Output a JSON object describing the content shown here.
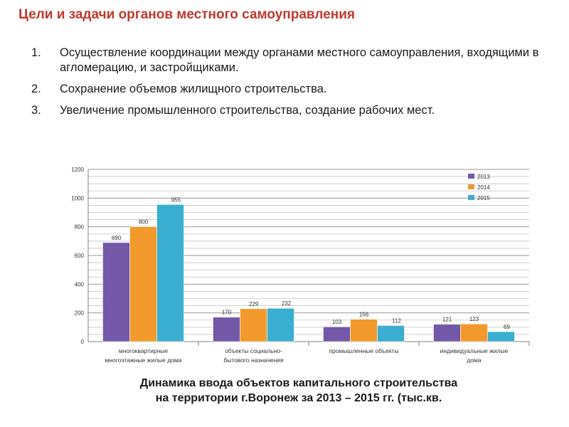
{
  "title": "Цели  и задачи органов местного самоуправления",
  "goals": [
    {
      "num": "1.",
      "text": "Осуществление координации между органами местного самоуправления, входящими в агломерацию, и застройщиками."
    },
    {
      "num": "2.",
      "text": " Сохранение объемов жилищного строительства."
    },
    {
      "num": "3.",
      "text": "Увеличение промышленного строительства, создание рабочих мест."
    }
  ],
  "caption": {
    "line1": "Динамика ввода объектов капитального строительства",
    "line2": "на территории г.Воронеж за 2013 – 2015 гг. (тыс.кв."
  },
  "colors": {
    "title": "#c0392b",
    "s2013": "#7458a8",
    "s2014": "#f39a2c",
    "s2015": "#3aaed0"
  },
  "chart_data": {
    "type": "bar",
    "categories": [
      [
        "многоквартирные",
        "многоэтажные жилые дома"
      ],
      [
        "объекты социально-",
        "бытового назначения"
      ],
      [
        "промышленные объекты"
      ],
      [
        "индивидуальные жилые",
        "дома"
      ]
    ],
    "series": [
      {
        "name": "2013",
        "values": [
          690,
          170,
          103,
          121
        ]
      },
      {
        "name": "2014",
        "values": [
          800,
          229,
          156,
          123
        ]
      },
      {
        "name": "2015",
        "values": [
          955,
          232,
          112,
          69
        ]
      }
    ],
    "ylim": [
      0,
      1200
    ],
    "yticks": [
      0,
      200,
      400,
      600,
      800,
      1000,
      1200
    ],
    "legend": "top-right",
    "grid": true
  }
}
